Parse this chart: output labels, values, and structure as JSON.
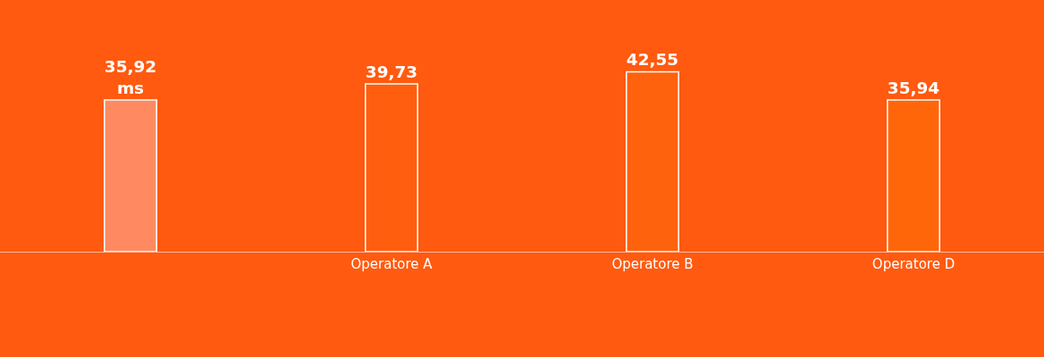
{
  "chart_data": {
    "type": "bar",
    "categories": [
      null,
      "Operatore A",
      "Operatore B",
      "Operatore D"
    ],
    "values": [
      35.92,
      39.73,
      42.55,
      35.94
    ],
    "value_labels": [
      "35,92 ms",
      "39,73",
      "42,55",
      "35,94"
    ],
    "colors": [
      "#ff8a62",
      "#ff5e0e",
      "#ff620c",
      "#ff660a"
    ],
    "tick_labels": "x",
    "grid": false,
    "legend": false
  }
}
